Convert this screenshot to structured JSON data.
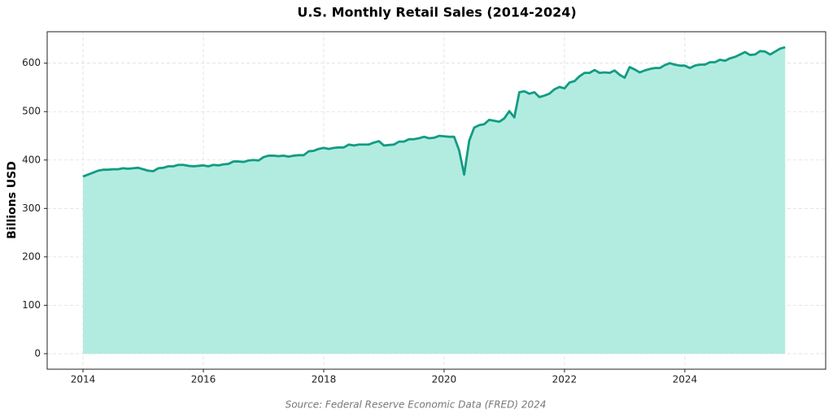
{
  "chart_data": {
    "type": "area",
    "title": "U.S. Monthly Retail Sales (2014-2024)",
    "y_label": "Billions USD",
    "source": "Source: Federal Reserve Economic Data (FRED) 2024",
    "color": "#129c82",
    "fill_color": "#b2ece1",
    "grid": true,
    "xlim": [
      2013.405,
      2026.34
    ],
    "xticks": [
      2014,
      2016,
      2018,
      2020,
      2022,
      2024
    ],
    "ylim": [
      -32,
      665
    ],
    "yticks": [
      0,
      100,
      200,
      300,
      400,
      500,
      600
    ],
    "x": [
      2014.0,
      2014.083,
      2014.167,
      2014.25,
      2014.333,
      2014.417,
      2014.5,
      2014.583,
      2014.667,
      2014.75,
      2014.833,
      2014.917,
      2015.0,
      2015.083,
      2015.167,
      2015.25,
      2015.333,
      2015.417,
      2015.5,
      2015.583,
      2015.667,
      2015.75,
      2015.833,
      2015.917,
      2016.0,
      2016.083,
      2016.167,
      2016.25,
      2016.333,
      2016.417,
      2016.5,
      2016.583,
      2016.667,
      2016.75,
      2016.833,
      2016.917,
      2017.0,
      2017.083,
      2017.167,
      2017.25,
      2017.333,
      2017.417,
      2017.5,
      2017.583,
      2017.667,
      2017.75,
      2017.833,
      2017.917,
      2018.0,
      2018.083,
      2018.167,
      2018.25,
      2018.333,
      2018.417,
      2018.5,
      2018.583,
      2018.667,
      2018.75,
      2018.833,
      2018.917,
      2019.0,
      2019.083,
      2019.167,
      2019.25,
      2019.333,
      2019.417,
      2019.5,
      2019.583,
      2019.667,
      2019.75,
      2019.833,
      2019.917,
      2020.0,
      2020.083,
      2020.167,
      2020.25,
      2020.333,
      2020.417,
      2020.5,
      2020.583,
      2020.667,
      2020.75,
      2020.833,
      2020.917,
      2021.0,
      2021.083,
      2021.167,
      2021.25,
      2021.333,
      2021.417,
      2021.5,
      2021.583,
      2021.667,
      2021.75,
      2021.833,
      2021.917,
      2022.0,
      2022.083,
      2022.167,
      2022.25,
      2022.333,
      2022.417,
      2022.5,
      2022.583,
      2022.667,
      2022.75,
      2022.833,
      2022.917,
      2023.0,
      2023.083,
      2023.167,
      2023.25,
      2023.333,
      2023.417,
      2023.5,
      2023.583,
      2023.667,
      2023.75,
      2023.833,
      2023.917,
      2024.0,
      2024.083,
      2024.167,
      2024.25,
      2024.333,
      2024.417,
      2024.5,
      2024.583,
      2024.667,
      2024.75,
      2024.833,
      2024.917,
      2025.0,
      2025.083,
      2025.167,
      2025.25,
      2025.333,
      2025.417,
      2025.5,
      2025.583,
      2025.667
    ],
    "values": [
      366,
      370,
      374,
      378,
      380,
      380,
      381,
      381,
      383,
      382,
      383,
      384,
      381,
      378,
      377,
      383,
      384,
      387,
      387,
      390,
      390,
      388,
      387,
      388,
      389,
      387,
      390,
      389,
      391,
      392,
      397,
      397,
      396,
      399,
      400,
      399,
      406,
      409,
      409,
      408,
      409,
      407,
      409,
      410,
      410,
      418,
      419,
      423,
      425,
      423,
      425,
      426,
      426,
      432,
      430,
      432,
      432,
      432,
      436,
      439,
      430,
      431,
      432,
      438,
      438,
      443,
      443,
      445,
      448,
      445,
      446,
      450,
      449,
      448,
      448,
      420,
      370,
      440,
      467,
      472,
      474,
      483,
      481,
      479,
      486,
      501,
      488,
      540,
      542,
      537,
      540,
      530,
      533,
      537,
      546,
      551,
      548,
      560,
      563,
      573,
      580,
      580,
      586,
      580,
      581,
      580,
      585,
      576,
      570,
      592,
      587,
      581,
      585,
      588,
      590,
      590,
      596,
      600,
      597,
      595,
      595,
      590,
      595,
      597,
      597,
      602,
      602,
      607,
      605,
      610,
      613,
      618,
      623,
      617,
      618,
      625,
      624,
      618,
      624,
      630,
      633
    ]
  }
}
